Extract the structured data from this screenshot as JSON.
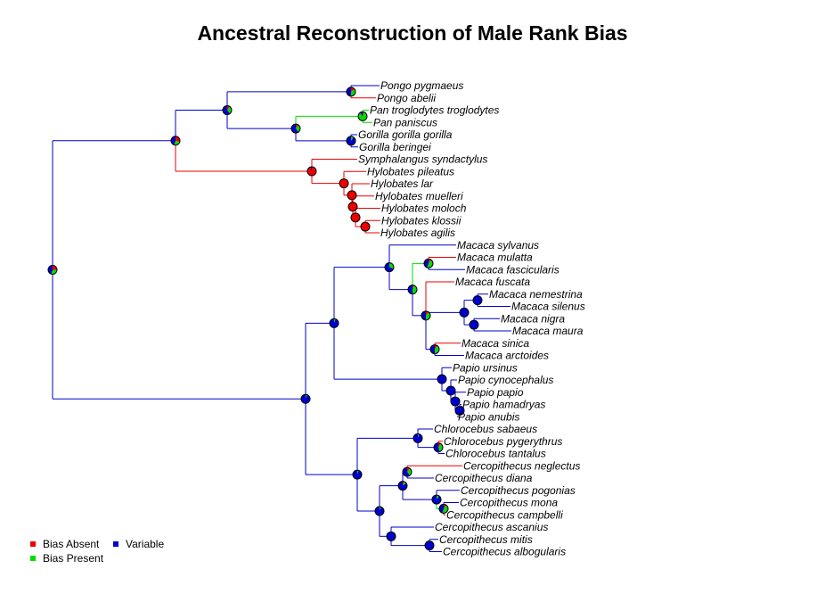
{
  "title": "Ancestral Reconstruction of Male Rank Bias",
  "colors": {
    "absent": "#ee0000",
    "present": "#00dd00",
    "variable": "#0000cc"
  },
  "legend": [
    {
      "key": "absent",
      "label": "Bias Absent"
    },
    {
      "key": "present",
      "label": "Bias Present"
    },
    {
      "key": "variable",
      "label": "Variable"
    }
  ],
  "tips": [
    {
      "name": "Pongo pygmaeus",
      "state": "variable"
    },
    {
      "name": "Pongo abelii",
      "state": "absent"
    },
    {
      "name": "Pan troglodytes troglodytes",
      "state": "present"
    },
    {
      "name": "Pan paniscus",
      "state": "present"
    },
    {
      "name": "Gorilla gorilla gorilla",
      "state": "variable"
    },
    {
      "name": "Gorilla beringei",
      "state": "variable"
    },
    {
      "name": "Symphalangus syndactylus",
      "state": "absent"
    },
    {
      "name": "Hylobates pileatus",
      "state": "absent"
    },
    {
      "name": "Hylobates lar",
      "state": "absent"
    },
    {
      "name": "Hylobates muelleri",
      "state": "absent"
    },
    {
      "name": "Hylobates moloch",
      "state": "absent"
    },
    {
      "name": "Hylobates klossii",
      "state": "absent"
    },
    {
      "name": "Hylobates agilis",
      "state": "absent"
    },
    {
      "name": "Macaca sylvanus",
      "state": "variable"
    },
    {
      "name": "Macaca mulatta",
      "state": "absent"
    },
    {
      "name": "Macaca fascicularis",
      "state": "variable"
    },
    {
      "name": "Macaca fuscata",
      "state": "absent"
    },
    {
      "name": "Macaca nemestrina",
      "state": "variable"
    },
    {
      "name": "Macaca silenus",
      "state": "variable"
    },
    {
      "name": "Macaca nigra",
      "state": "variable"
    },
    {
      "name": "Macaca maura",
      "state": "variable"
    },
    {
      "name": "Macaca sinica",
      "state": "absent"
    },
    {
      "name": "Macaca arctoides",
      "state": "variable"
    },
    {
      "name": "Papio ursinus",
      "state": "variable"
    },
    {
      "name": "Papio cynocephalus",
      "state": "variable"
    },
    {
      "name": "Papio papio",
      "state": "variable"
    },
    {
      "name": "Papio hamadryas",
      "state": "variable"
    },
    {
      "name": "Papio anubis",
      "state": "variable"
    },
    {
      "name": "Chlorocebus sabaeus",
      "state": "variable"
    },
    {
      "name": "Chlorocebus pygerythrus",
      "state": "absent"
    },
    {
      "name": "Chlorocebus tantalus",
      "state": "variable"
    },
    {
      "name": "Cercopithecus neglectus",
      "state": "absent"
    },
    {
      "name": "Cercopithecus diana",
      "state": "variable"
    },
    {
      "name": "Cercopithecus pogonias",
      "state": "variable"
    },
    {
      "name": "Cercopithecus mona",
      "state": "variable"
    },
    {
      "name": "Cercopithecus campbelli",
      "state": "absent"
    },
    {
      "name": "Cercopithecus ascanius",
      "state": "variable"
    },
    {
      "name": "Cercopithecus mitis",
      "state": "variable"
    },
    {
      "name": "Cercopithecus albogularis",
      "state": "variable"
    }
  ],
  "tree": {
    "id": "root",
    "pie": [
      0.25,
      0.3,
      0.45
    ],
    "children": [
      {
        "id": "hominoids",
        "pie": [
          0.3,
          0.25,
          0.45
        ],
        "children": [
          {
            "id": "great-apes",
            "pie": [
              0.1,
              0.3,
              0.6
            ],
            "children": [
              {
                "id": "pongo",
                "pie": [
                  0.15,
                  0.35,
                  0.5
                ],
                "children": [
                  {
                    "tip": 0
                  },
                  {
                    "tip": 1
                  }
                ]
              },
              {
                "id": "hominines",
                "pie": [
                  0.1,
                  0.3,
                  0.6
                ],
                "children": [
                  {
                    "id": "pan",
                    "pie": [
                      0.05,
                      0.85,
                      0.1
                    ],
                    "children": [
                      {
                        "tip": 2
                      },
                      {
                        "tip": 3
                      }
                    ]
                  },
                  {
                    "id": "gorilla",
                    "pie": [
                      0.0,
                      0.1,
                      0.9
                    ],
                    "children": [
                      {
                        "tip": 4
                      },
                      {
                        "tip": 5
                      }
                    ]
                  }
                ]
              }
            ]
          },
          {
            "id": "gibbons",
            "pie": [
              0.95,
              0.0,
              0.05
            ],
            "children": [
              {
                "tip": 6
              },
              {
                "id": "hylo1",
                "pie": [
                  1.0,
                  0.0,
                  0.0
                ],
                "children": [
                  {
                    "tip": 7
                  },
                  {
                    "id": "hylo2",
                    "pie": [
                      1.0,
                      0.0,
                      0.0
                    ],
                    "children": [
                      {
                        "tip": 8
                      },
                      {
                        "id": "hylo3",
                        "pie": [
                          1.0,
                          0.0,
                          0.0
                        ],
                        "children": [
                          {
                            "tip": 9
                          },
                          {
                            "id": "hylo4",
                            "pie": [
                              1.0,
                              0.0,
                              0.0
                            ],
                            "children": [
                              {
                                "tip": 10
                              },
                              {
                                "id": "hylo5",
                                "pie": [
                                  1.0,
                                  0.0,
                                  0.0
                                ],
                                "children": [
                                  {
                                    "tip": 11
                                  },
                                  {
                                    "tip": 12
                                  }
                                ]
                              }
                            ]
                          }
                        ]
                      }
                    ]
                  }
                ]
              }
            ]
          }
        ]
      },
      {
        "id": "old-world-monkeys",
        "pie": [
          0.0,
          0.05,
          0.95
        ],
        "children": [
          {
            "id": "papionini",
            "pie": [
              0.0,
              0.05,
              0.95
            ],
            "children": [
              {
                "id": "macaca",
                "pie": [
                  0.0,
                  0.3,
                  0.7
                ],
                "children": [
                  {
                    "tip": 13
                  },
                  {
                    "id": "macaca-core",
                    "pie": [
                      0.05,
                      0.45,
                      0.5
                    ],
                    "children": [
                      {
                        "id": "mulatta-fasc",
                        "pie": [
                          0.1,
                          0.45,
                          0.45
                        ],
                        "children": [
                          {
                            "tip": 14
                          },
                          {
                            "tip": 15
                          }
                        ]
                      },
                      {
                        "id": "macaca-sub",
                        "pie": [
                          0.1,
                          0.4,
                          0.5
                        ],
                        "children": [
                          {
                            "tip": 16
                          },
                          {
                            "id": "silenus-group",
                            "pie": [
                              0.0,
                              0.0,
                              1.0
                            ],
                            "children": [
                              {
                                "id": "nem-sil",
                                "pie": [
                                  0.0,
                                  0.0,
                                  1.0
                                ],
                                "children": [
                                  {
                                    "tip": 17
                                  },
                                  {
                                    "tip": 18
                                  }
                                ]
                              },
                              {
                                "id": "nig-mau",
                                "pie": [
                                  0.0,
                                  0.0,
                                  1.0
                                ],
                                "children": [
                                  {
                                    "tip": 19
                                  },
                                  {
                                    "tip": 20
                                  }
                                ]
                              }
                            ]
                          },
                          {
                            "id": "sin-arc",
                            "pie": [
                              0.1,
                              0.4,
                              0.5
                            ],
                            "children": [
                              {
                                "tip": 21
                              },
                              {
                                "tip": 22
                              }
                            ]
                          }
                        ]
                      }
                    ]
                  }
                ]
              },
              {
                "id": "papio",
                "pie": [
                  0.0,
                  0.0,
                  1.0
                ],
                "children": [
                  {
                    "tip": 23
                  },
                  {
                    "id": "papio2",
                    "pie": [
                      0.0,
                      0.0,
                      1.0
                    ],
                    "children": [
                      {
                        "tip": 24
                      },
                      {
                        "id": "papio3",
                        "pie": [
                          0.0,
                          0.0,
                          1.0
                        ],
                        "children": [
                          {
                            "tip": 25
                          },
                          {
                            "id": "papio4",
                            "pie": [
                              0.0,
                              0.0,
                              1.0
                            ],
                            "children": [
                              {
                                "tip": 26
                              },
                              {
                                "tip": 27
                              }
                            ]
                          }
                        ]
                      }
                    ]
                  }
                ]
              }
            ]
          },
          {
            "id": "cercopithecini",
            "pie": [
              0.0,
              0.05,
              0.95
            ],
            "children": [
              {
                "id": "chlorocebus",
                "pie": [
                  0.0,
                  0.05,
                  0.95
                ],
                "children": [
                  {
                    "tip": 28
                  },
                  {
                    "id": "chloro2",
                    "pie": [
                      0.1,
                      0.35,
                      0.55
                    ],
                    "children": [
                      {
                        "tip": 29
                      },
                      {
                        "tip": 30
                      }
                    ]
                  }
                ]
              },
              {
                "id": "cercopithecus",
                "pie": [
                  0.0,
                  0.05,
                  0.95
                ],
                "children": [
                  {
                    "id": "cerco-a",
                    "pie": [
                      0.05,
                      0.1,
                      0.85
                    ],
                    "children": [
                      {
                        "id": "negl-diana",
                        "pie": [
                          0.1,
                          0.3,
                          0.6
                        ],
                        "children": [
                          {
                            "tip": 31
                          },
                          {
                            "tip": 32
                          }
                        ]
                      },
                      {
                        "id": "mona-group",
                        "pie": [
                          0.0,
                          0.1,
                          0.9
                        ],
                        "children": [
                          {
                            "tip": 33
                          },
                          {
                            "id": "mona-camp",
                            "pie": [
                              0.1,
                              0.45,
                              0.45
                            ],
                            "children": [
                              {
                                "tip": 34
                              },
                              {
                                "tip": 35
                              }
                            ]
                          }
                        ]
                      }
                    ]
                  },
                  {
                    "id": "mitis-group",
                    "pie": [
                      0.0,
                      0.0,
                      1.0
                    ],
                    "children": [
                      {
                        "tip": 36
                      },
                      {
                        "id": "mitis-alb",
                        "pie": [
                          0.0,
                          0.0,
                          1.0
                        ],
                        "children": [
                          {
                            "tip": 37
                          },
                          {
                            "tip": 38
                          }
                        ]
                      }
                    ]
                  }
                ]
              }
            ]
          }
        ]
      }
    ]
  }
}
